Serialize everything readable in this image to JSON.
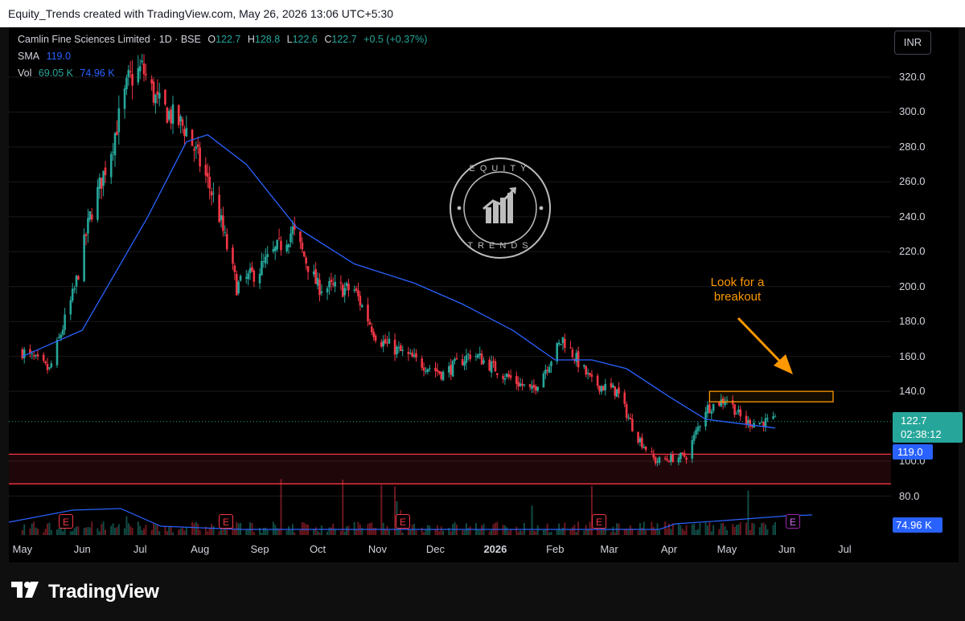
{
  "header_text": "Equity_Trends created with TradingView.com, May 26, 2026 13:06 UTC+5:30",
  "legend": {
    "symbol": "Camlin Fine Sciences Limited · 1D · BSE",
    "open_label": "O",
    "open": "122.7",
    "high_label": "H",
    "high": "128.8",
    "low_label": "L",
    "low": "122.6",
    "close_label": "C",
    "close": "122.7",
    "change": "+0.5 (+0.37%)",
    "sma_label": "SMA",
    "sma_value": "119.0",
    "vol_label": "Vol",
    "vol_value": "69.05 K",
    "vol_ma": "74.96 K"
  },
  "currency": "INR",
  "price_label": "122.7",
  "countdown": "02:38:12",
  "sma_label_value": "119.0",
  "volume_label_value": "74.96 K",
  "annotation": {
    "line1": "Look for a",
    "line2": "breakout"
  },
  "earnings_marker": "E",
  "watermark": {
    "top": "EQUITY",
    "bottom": "TRENDS"
  },
  "brand": "TradingView",
  "colors": {
    "up": "#26a69a",
    "down": "#f23645",
    "sma": "#2962ff",
    "annotation": "#ff9800",
    "support_zone": "#f23645"
  },
  "chart_data": {
    "type": "candlestick",
    "y_axis_ticks": [
      "320.0",
      "300.0",
      "280.0",
      "260.0",
      "240.0",
      "220.0",
      "200.0",
      "180.0",
      "160.0",
      "140.0",
      "100.0",
      "80.0"
    ],
    "x_axis_ticks": [
      "May",
      "Jun",
      "Jul",
      "Aug",
      "Sep",
      "Oct",
      "Nov",
      "Dec",
      "2026",
      "Feb",
      "Mar",
      "Apr",
      "May",
      "Jun",
      "Jul"
    ],
    "ylim": [
      60,
      335
    ],
    "price_path": [
      {
        "date": "2025-05-01",
        "close": 163
      },
      {
        "date": "2025-05-15",
        "close": 152
      },
      {
        "date": "2025-05-28",
        "close": 198
      },
      {
        "date": "2025-06-05",
        "close": 240
      },
      {
        "date": "2025-06-15",
        "close": 275
      },
      {
        "date": "2025-06-25",
        "close": 318
      },
      {
        "date": "2025-07-02",
        "close": 325
      },
      {
        "date": "2025-07-10",
        "close": 305
      },
      {
        "date": "2025-07-25",
        "close": 290
      },
      {
        "date": "2025-08-05",
        "close": 260
      },
      {
        "date": "2025-08-10",
        "close": 245
      },
      {
        "date": "2025-08-20",
        "close": 200
      },
      {
        "date": "2025-09-01",
        "close": 210
      },
      {
        "date": "2025-09-18",
        "close": 232
      },
      {
        "date": "2025-10-01",
        "close": 200
      },
      {
        "date": "2025-10-20",
        "close": 198
      },
      {
        "date": "2025-11-01",
        "close": 170
      },
      {
        "date": "2025-11-20",
        "close": 158
      },
      {
        "date": "2025-12-05",
        "close": 150
      },
      {
        "date": "2025-12-20",
        "close": 162
      },
      {
        "date": "2026-01-05",
        "close": 150
      },
      {
        "date": "2026-01-20",
        "close": 140
      },
      {
        "date": "2026-02-05",
        "close": 170
      },
      {
        "date": "2026-02-20",
        "close": 145
      },
      {
        "date": "2026-03-05",
        "close": 140
      },
      {
        "date": "2026-03-15",
        "close": 115
      },
      {
        "date": "2026-03-25",
        "close": 100
      },
      {
        "date": "2026-04-10",
        "close": 103
      },
      {
        "date": "2026-04-20",
        "close": 130
      },
      {
        "date": "2026-05-01",
        "close": 136
      },
      {
        "date": "2026-05-10",
        "close": 122
      },
      {
        "date": "2026-05-26",
        "close": 122.7
      }
    ],
    "sma_path": [
      {
        "date": "2025-05-01",
        "value": 160
      },
      {
        "date": "2025-06-01",
        "value": 175
      },
      {
        "date": "2025-07-05",
        "value": 240
      },
      {
        "date": "2025-07-25",
        "value": 283
      },
      {
        "date": "2025-08-05",
        "value": 287
      },
      {
        "date": "2025-08-25",
        "value": 270
      },
      {
        "date": "2025-09-20",
        "value": 234
      },
      {
        "date": "2025-10-20",
        "value": 213
      },
      {
        "date": "2025-11-20",
        "value": 202
      },
      {
        "date": "2025-12-15",
        "value": 190
      },
      {
        "date": "2026-01-10",
        "value": 175
      },
      {
        "date": "2026-02-01",
        "value": 158
      },
      {
        "date": "2026-02-20",
        "value": 158
      },
      {
        "date": "2026-03-10",
        "value": 153
      },
      {
        "date": "2026-04-01",
        "value": 137
      },
      {
        "date": "2026-04-20",
        "value": 124
      },
      {
        "date": "2026-05-26",
        "value": 119
      }
    ],
    "current_price": 122.7,
    "sma": 119.0,
    "support_zone": [
      87,
      104
    ],
    "resistance_box": [
      134,
      140
    ],
    "current_volume": "69.05 K",
    "volume_ma": "74.96 K"
  }
}
